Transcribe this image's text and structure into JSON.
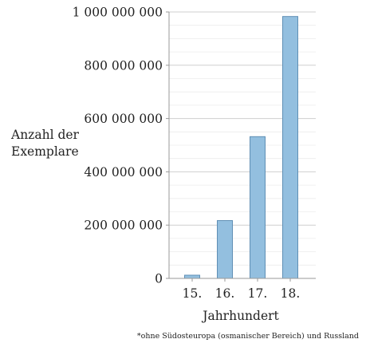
{
  "chart_data": {
    "type": "bar",
    "categories": [
      "15.",
      "16.",
      "17.",
      "18."
    ],
    "values": [
      12000000,
      217000000,
      532000000,
      983000000
    ],
    "ylim": [
      0,
      1000000000
    ],
    "yticks": [
      0,
      200000000,
      400000000,
      600000000,
      800000000,
      1000000000
    ],
    "ytick_labels": [
      "0",
      "200 000 000",
      "400 000 000",
      "600 000 000",
      "800 000 000",
      "1 000 000 000"
    ],
    "ylabel_lines": [
      "Anzahl der",
      "Exemplare"
    ],
    "xlabel": "Jahrhundert",
    "footnote": "*ohne Südosteuropa (osmanischer Bereich) und Russland",
    "grid": true,
    "bar_color": "#93bfdf",
    "bar_edge_color": "#5f8fb5"
  }
}
